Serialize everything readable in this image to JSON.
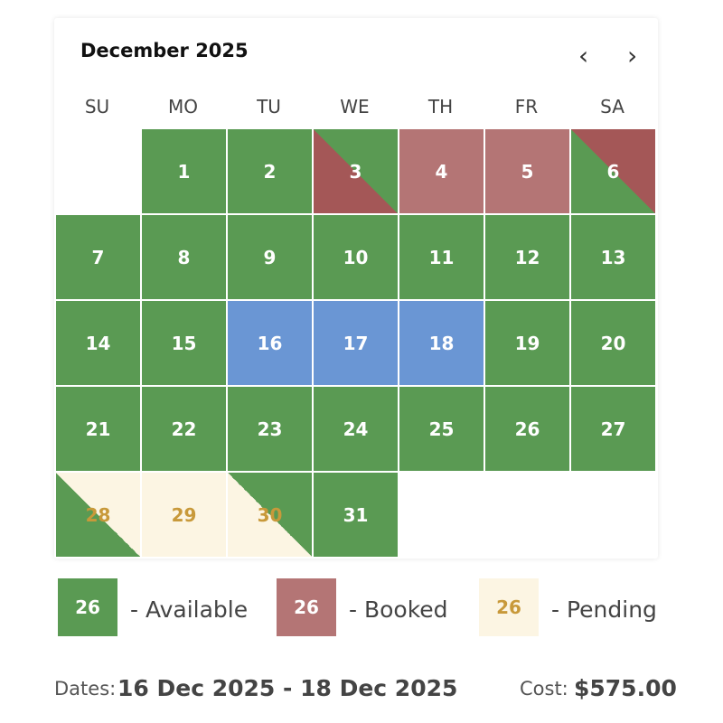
{
  "calendar": {
    "month_title": "December 2025",
    "prev_icon": "‹",
    "next_icon": "›",
    "weekdays": [
      "SU",
      "MO",
      "TU",
      "WE",
      "TH",
      "FR",
      "SA"
    ],
    "days": [
      {
        "day": "1",
        "status": "available"
      },
      {
        "day": "2",
        "status": "available"
      },
      {
        "day": "3",
        "status": "available-to-booked"
      },
      {
        "day": "4",
        "status": "booked"
      },
      {
        "day": "5",
        "status": "booked"
      },
      {
        "day": "6",
        "status": "booked-to-available"
      },
      {
        "day": "7",
        "status": "available"
      },
      {
        "day": "8",
        "status": "available"
      },
      {
        "day": "9",
        "status": "available"
      },
      {
        "day": "10",
        "status": "available"
      },
      {
        "day": "11",
        "status": "available"
      },
      {
        "day": "12",
        "status": "available"
      },
      {
        "day": "13",
        "status": "available"
      },
      {
        "day": "14",
        "status": "available"
      },
      {
        "day": "15",
        "status": "available"
      },
      {
        "day": "16",
        "status": "selected"
      },
      {
        "day": "17",
        "status": "selected"
      },
      {
        "day": "18",
        "status": "selected"
      },
      {
        "day": "19",
        "status": "available"
      },
      {
        "day": "20",
        "status": "available"
      },
      {
        "day": "21",
        "status": "available"
      },
      {
        "day": "22",
        "status": "available"
      },
      {
        "day": "23",
        "status": "available"
      },
      {
        "day": "24",
        "status": "available"
      },
      {
        "day": "25",
        "status": "available"
      },
      {
        "day": "26",
        "status": "available"
      },
      {
        "day": "27",
        "status": "available"
      },
      {
        "day": "28",
        "status": "available-to-pending"
      },
      {
        "day": "29",
        "status": "pending"
      },
      {
        "day": "30",
        "status": "pending-to-available"
      },
      {
        "day": "31",
        "status": "available"
      }
    ]
  },
  "legend": {
    "available_sample": "26",
    "available_label": "- Available",
    "booked_sample": "26",
    "booked_label": "- Booked",
    "pending_sample": "26",
    "pending_label": "- Pending"
  },
  "footer": {
    "dates_label": "Dates:",
    "dates_value": "16 Dec 2025 - 18 Dec 2025",
    "cost_label": "Cost:",
    "cost_value": "$575.00"
  },
  "colors": {
    "available": "#5a9a53",
    "booked": "#b47575",
    "booked_dark": "#a45757",
    "selected": "#6a96d4",
    "pending": "#fcf5e3",
    "pending_text": "#c8993a"
  }
}
